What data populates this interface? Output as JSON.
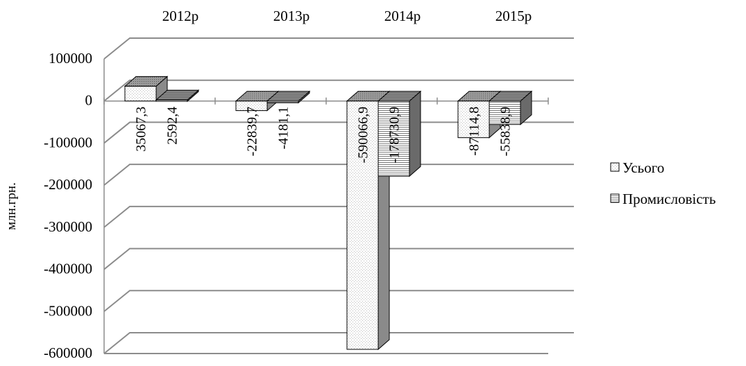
{
  "chart_data": {
    "type": "bar",
    "categories": [
      "2012р",
      "2013р",
      "2014р",
      "2015р"
    ],
    "series": [
      {
        "name": "Усього",
        "values": [
          35067.3,
          -22839.7,
          -590066.9,
          -87114.8
        ],
        "labels": [
          "35067,3",
          "-22839,7",
          "-590066,9",
          "-87114,8"
        ]
      },
      {
        "name": "Промисловість",
        "values": [
          2592.4,
          -4181.1,
          -178730.9,
          -55838.9
        ],
        "labels": [
          "2592,4",
          "-4181,1",
          "-178730,9",
          "-55838,9"
        ]
      }
    ],
    "ylabel": "млн.грн.",
    "ylim": [
      -600000,
      100000
    ],
    "yticks": [
      100000,
      0,
      -100000,
      -200000,
      -300000,
      -400000,
      -500000,
      -600000
    ],
    "grid": true,
    "legend": "right",
    "three_d": true,
    "categories_position": "top"
  }
}
